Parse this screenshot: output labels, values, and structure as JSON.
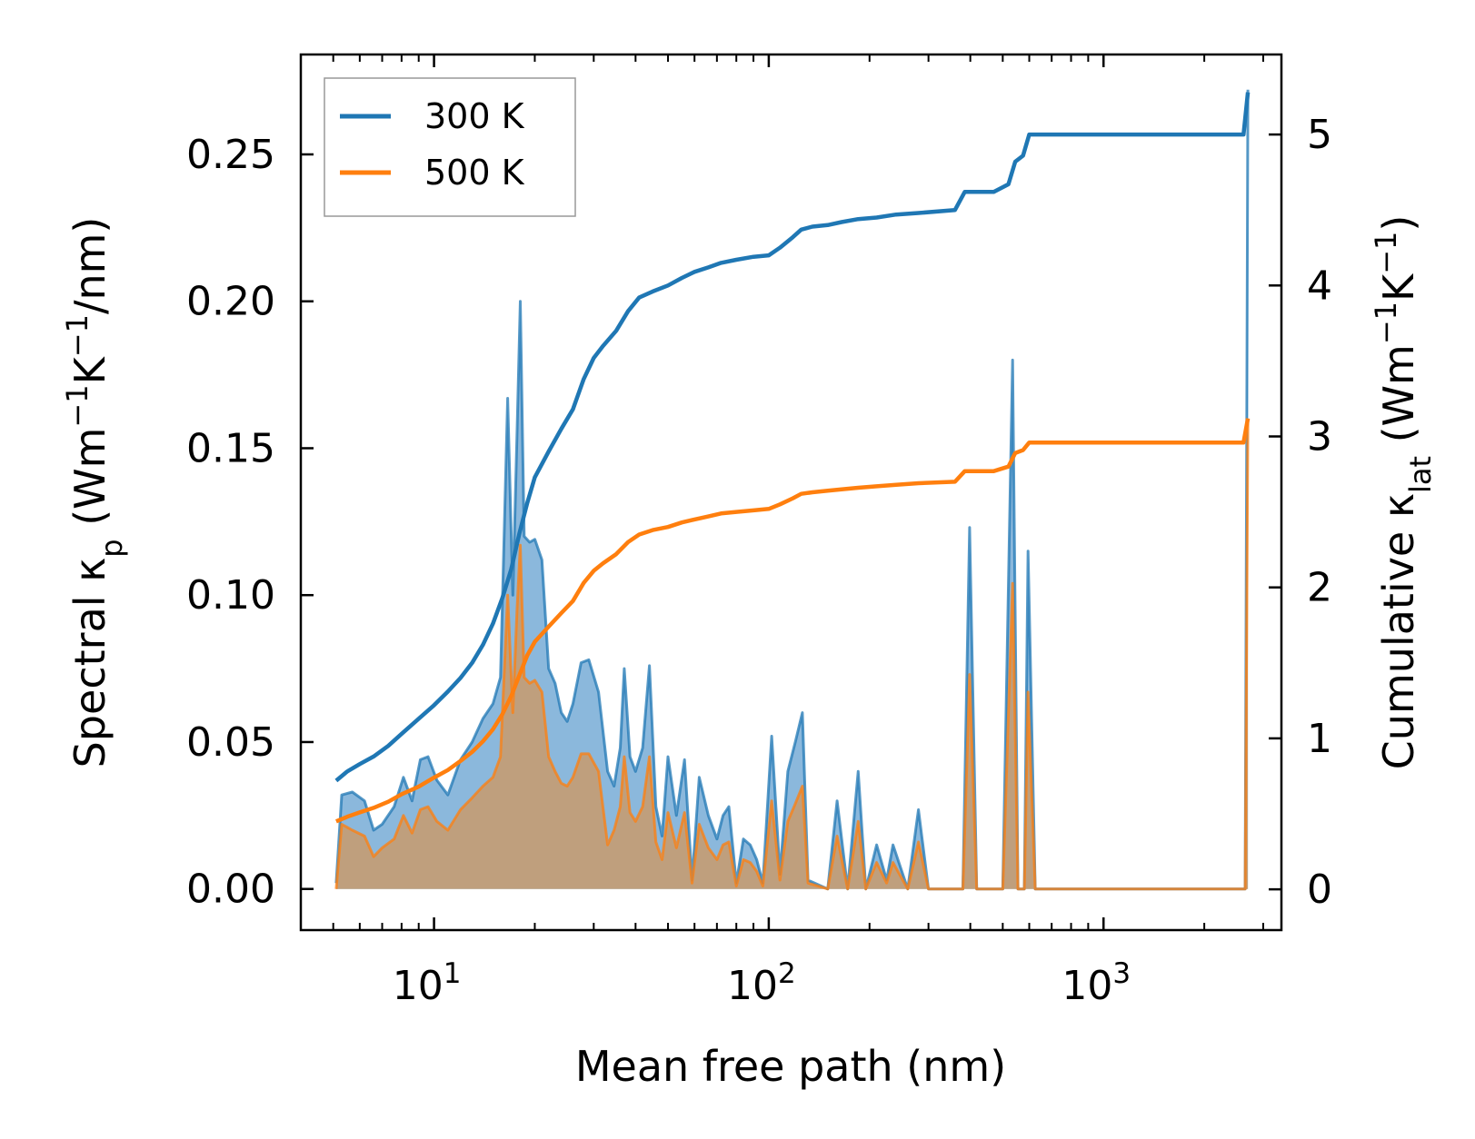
{
  "chart_data": {
    "type": "line+area",
    "xscale": "log",
    "xlabel": "Mean free path (nm)",
    "xlim": [
      4,
      3400
    ],
    "xticks": [
      {
        "value": 10,
        "base": "10",
        "exp": "1"
      },
      {
        "value": 100,
        "base": "10",
        "exp": "2"
      },
      {
        "value": 1000,
        "base": "10",
        "exp": "3"
      }
    ],
    "ylabel_left": {
      "prefix": "Spectral κ",
      "sub": "p",
      "mid": " (Wm",
      "sup1": "−1",
      "k": "K",
      "sup2": "−1",
      "suffix": "/nm)"
    },
    "ylabel_right": {
      "prefix": "Cumulative κ",
      "sub": "lat",
      "mid": " (Wm",
      "sup1": "−1",
      "k": "K",
      "sup2": "−1",
      "suffix": ")"
    },
    "ylim_left": [
      -0.014,
      0.284
    ],
    "ylim_right": [
      -0.27,
      5.53
    ],
    "yticks_left": [
      "0.00",
      "0.05",
      "0.10",
      "0.15",
      "0.20",
      "0.25"
    ],
    "yticks_right": [
      "0",
      "1",
      "2",
      "3",
      "4",
      "5"
    ],
    "legend": {
      "location": "top-left",
      "entries": [
        "300 K",
        "500 K"
      ]
    },
    "colors": {
      "s300": "#1f77b4",
      "s500": "#ff7f0e",
      "fill300": "#7eb0d8",
      "fill500": "#c89a6c"
    },
    "series": [
      {
        "name": "300 K",
        "spectral_peaks": [
          [
            5.1,
            0.002
          ],
          [
            5.3,
            0.032
          ],
          [
            5.7,
            0.033
          ],
          [
            6.2,
            0.03
          ],
          [
            6.6,
            0.02
          ],
          [
            7.0,
            0.022
          ],
          [
            7.6,
            0.028
          ],
          [
            8.1,
            0.038
          ],
          [
            8.6,
            0.03
          ],
          [
            9.1,
            0.044
          ],
          [
            9.6,
            0.045
          ],
          [
            10.2,
            0.037
          ],
          [
            11.0,
            0.032
          ],
          [
            12.0,
            0.044
          ],
          [
            13.0,
            0.05
          ],
          [
            14.0,
            0.058
          ],
          [
            15.0,
            0.063
          ],
          [
            15.8,
            0.072
          ],
          [
            16.6,
            0.167
          ],
          [
            17.2,
            0.1
          ],
          [
            17.7,
            0.155
          ],
          [
            18.1,
            0.2
          ],
          [
            18.6,
            0.12
          ],
          [
            19.3,
            0.118
          ],
          [
            20.0,
            0.119
          ],
          [
            21.0,
            0.112
          ],
          [
            22.0,
            0.075
          ],
          [
            23.0,
            0.07
          ],
          [
            24.0,
            0.06
          ],
          [
            25.0,
            0.057
          ],
          [
            26.0,
            0.063
          ],
          [
            27.5,
            0.077
          ],
          [
            29.0,
            0.078
          ],
          [
            31.0,
            0.067
          ],
          [
            33.0,
            0.04
          ],
          [
            34.5,
            0.035
          ],
          [
            36.0,
            0.048
          ],
          [
            37.0,
            0.075
          ],
          [
            38.5,
            0.045
          ],
          [
            40.0,
            0.04
          ],
          [
            42.0,
            0.048
          ],
          [
            44.0,
            0.076
          ],
          [
            46.0,
            0.028
          ],
          [
            48.0,
            0.018
          ],
          [
            50.0,
            0.045
          ],
          [
            53.0,
            0.025
          ],
          [
            56.0,
            0.044
          ],
          [
            59.0,
            0.003
          ],
          [
            62.0,
            0.038
          ],
          [
            66.0,
            0.025
          ],
          [
            70.0,
            0.017
          ],
          [
            73.0,
            0.025
          ],
          [
            76.0,
            0.028
          ],
          [
            80.0,
            0.002
          ],
          [
            84.0,
            0.017
          ],
          [
            88.0,
            0.015
          ],
          [
            92.0,
            0.01
          ],
          [
            96.0,
            0.002
          ],
          [
            102.0,
            0.052
          ],
          [
            108.0,
            0.005
          ],
          [
            114.0,
            0.04
          ],
          [
            120.0,
            0.05
          ],
          [
            126.0,
            0.06
          ],
          [
            131.0,
            0.003
          ],
          [
            150.0,
            0.0
          ],
          [
            160.0,
            0.03
          ],
          [
            172.0,
            0.0
          ],
          [
            185.0,
            0.04
          ],
          [
            195.0,
            0.0
          ],
          [
            210.0,
            0.015
          ],
          [
            225.0,
            0.003
          ],
          [
            235.0,
            0.015
          ],
          [
            260.0,
            0.0
          ],
          [
            280.0,
            0.027
          ],
          [
            300.0,
            0.0
          ],
          [
            380.0,
            0.0
          ],
          [
            398.0,
            0.123
          ],
          [
            418.0,
            0.0
          ],
          [
            500.0,
            0.0
          ],
          [
            535.0,
            0.18
          ],
          [
            555.0,
            0.0
          ],
          [
            580.0,
            0.0
          ],
          [
            595.0,
            0.115
          ],
          [
            625.0,
            0.0
          ],
          [
            2650.0,
            0.0
          ],
          [
            2700.0,
            0.272
          ]
        ],
        "cumulative": [
          [
            5.1,
            0.72
          ],
          [
            5.5,
            0.78
          ],
          [
            6.0,
            0.83
          ],
          [
            6.6,
            0.88
          ],
          [
            7.3,
            0.95
          ],
          [
            8.0,
            1.03
          ],
          [
            9.0,
            1.13
          ],
          [
            10.0,
            1.22
          ],
          [
            11.0,
            1.31
          ],
          [
            12.0,
            1.4
          ],
          [
            13.0,
            1.5
          ],
          [
            14.0,
            1.62
          ],
          [
            15.0,
            1.76
          ],
          [
            16.0,
            1.93
          ],
          [
            17.0,
            2.12
          ],
          [
            18.0,
            2.36
          ],
          [
            19.0,
            2.56
          ],
          [
            20.0,
            2.73
          ],
          [
            22.0,
            2.9
          ],
          [
            24.0,
            3.05
          ],
          [
            26.0,
            3.18
          ],
          [
            28.0,
            3.38
          ],
          [
            30.0,
            3.52
          ],
          [
            32.0,
            3.6
          ],
          [
            35.0,
            3.7
          ],
          [
            38.0,
            3.83
          ],
          [
            41.0,
            3.92
          ],
          [
            45.0,
            3.96
          ],
          [
            50.0,
            4.0
          ],
          [
            55.0,
            4.05
          ],
          [
            60.0,
            4.09
          ],
          [
            66.0,
            4.12
          ],
          [
            72.0,
            4.15
          ],
          [
            80.0,
            4.17
          ],
          [
            90.0,
            4.19
          ],
          [
            100.0,
            4.2
          ],
          [
            108.0,
            4.25
          ],
          [
            118.0,
            4.32
          ],
          [
            125.0,
            4.37
          ],
          [
            135.0,
            4.39
          ],
          [
            150.0,
            4.4
          ],
          [
            165.0,
            4.42
          ],
          [
            185.0,
            4.44
          ],
          [
            210.0,
            4.45
          ],
          [
            240.0,
            4.47
          ],
          [
            280.0,
            4.48
          ],
          [
            360.0,
            4.5
          ],
          [
            385.0,
            4.62
          ],
          [
            470.0,
            4.62
          ],
          [
            520.0,
            4.67
          ],
          [
            545.0,
            4.82
          ],
          [
            575.0,
            4.86
          ],
          [
            600.0,
            5.0
          ],
          [
            2620.0,
            5.0
          ],
          [
            2700.0,
            5.28
          ]
        ]
      },
      {
        "name": "500 K",
        "spectral_peaks": [
          [
            5.1,
            0.0
          ],
          [
            5.3,
            0.022
          ],
          [
            5.7,
            0.02
          ],
          [
            6.2,
            0.018
          ],
          [
            6.6,
            0.011
          ],
          [
            7.0,
            0.014
          ],
          [
            7.6,
            0.017
          ],
          [
            8.1,
            0.025
          ],
          [
            8.6,
            0.019
          ],
          [
            9.1,
            0.027
          ],
          [
            9.6,
            0.028
          ],
          [
            10.2,
            0.023
          ],
          [
            11.0,
            0.02
          ],
          [
            12.0,
            0.027
          ],
          [
            13.0,
            0.031
          ],
          [
            14.0,
            0.035
          ],
          [
            15.0,
            0.038
          ],
          [
            15.8,
            0.045
          ],
          [
            16.6,
            0.1
          ],
          [
            17.2,
            0.06
          ],
          [
            17.7,
            0.095
          ],
          [
            18.1,
            0.117
          ],
          [
            18.6,
            0.072
          ],
          [
            19.3,
            0.07
          ],
          [
            20.0,
            0.071
          ],
          [
            21.0,
            0.067
          ],
          [
            22.0,
            0.045
          ],
          [
            23.0,
            0.04
          ],
          [
            24.0,
            0.036
          ],
          [
            25.0,
            0.035
          ],
          [
            26.0,
            0.038
          ],
          [
            27.5,
            0.046
          ],
          [
            29.0,
            0.046
          ],
          [
            31.0,
            0.04
          ],
          [
            33.0,
            0.015
          ],
          [
            34.5,
            0.02
          ],
          [
            36.0,
            0.028
          ],
          [
            37.0,
            0.045
          ],
          [
            38.5,
            0.026
          ],
          [
            40.0,
            0.023
          ],
          [
            42.0,
            0.028
          ],
          [
            44.0,
            0.045
          ],
          [
            46.0,
            0.016
          ],
          [
            48.0,
            0.01
          ],
          [
            50.0,
            0.026
          ],
          [
            53.0,
            0.014
          ],
          [
            56.0,
            0.026
          ],
          [
            59.0,
            0.002
          ],
          [
            62.0,
            0.022
          ],
          [
            66.0,
            0.014
          ],
          [
            70.0,
            0.01
          ],
          [
            73.0,
            0.015
          ],
          [
            76.0,
            0.016
          ],
          [
            80.0,
            0.001
          ],
          [
            84.0,
            0.01
          ],
          [
            88.0,
            0.009
          ],
          [
            92.0,
            0.006
          ],
          [
            96.0,
            0.001
          ],
          [
            102.0,
            0.03
          ],
          [
            108.0,
            0.003
          ],
          [
            114.0,
            0.023
          ],
          [
            120.0,
            0.029
          ],
          [
            126.0,
            0.035
          ],
          [
            131.0,
            0.002
          ],
          [
            150.0,
            0.0
          ],
          [
            160.0,
            0.018
          ],
          [
            172.0,
            0.0
          ],
          [
            185.0,
            0.023
          ],
          [
            195.0,
            0.0
          ],
          [
            210.0,
            0.009
          ],
          [
            225.0,
            0.002
          ],
          [
            235.0,
            0.009
          ],
          [
            260.0,
            0.0
          ],
          [
            280.0,
            0.016
          ],
          [
            300.0,
            0.0
          ],
          [
            380.0,
            0.0
          ],
          [
            398.0,
            0.073
          ],
          [
            418.0,
            0.0
          ],
          [
            500.0,
            0.0
          ],
          [
            535.0,
            0.104
          ],
          [
            555.0,
            0.0
          ],
          [
            580.0,
            0.0
          ],
          [
            595.0,
            0.067
          ],
          [
            625.0,
            0.0
          ],
          [
            2650.0,
            0.0
          ],
          [
            2700.0,
            0.16
          ]
        ],
        "cumulative": [
          [
            5.1,
            0.45
          ],
          [
            5.5,
            0.48
          ],
          [
            6.0,
            0.51
          ],
          [
            6.6,
            0.54
          ],
          [
            7.3,
            0.58
          ],
          [
            8.0,
            0.63
          ],
          [
            9.0,
            0.68
          ],
          [
            10.0,
            0.74
          ],
          [
            11.0,
            0.79
          ],
          [
            12.0,
            0.85
          ],
          [
            13.0,
            0.91
          ],
          [
            14.0,
            0.98
          ],
          [
            15.0,
            1.06
          ],
          [
            16.0,
            1.16
          ],
          [
            17.0,
            1.28
          ],
          [
            18.0,
            1.42
          ],
          [
            19.0,
            1.55
          ],
          [
            20.0,
            1.64
          ],
          [
            22.0,
            1.74
          ],
          [
            24.0,
            1.83
          ],
          [
            26.0,
            1.91
          ],
          [
            28.0,
            2.03
          ],
          [
            30.0,
            2.11
          ],
          [
            32.0,
            2.16
          ],
          [
            35.0,
            2.22
          ],
          [
            38.0,
            2.3
          ],
          [
            41.0,
            2.35
          ],
          [
            45.0,
            2.38
          ],
          [
            50.0,
            2.4
          ],
          [
            55.0,
            2.43
          ],
          [
            60.0,
            2.45
          ],
          [
            66.0,
            2.47
          ],
          [
            72.0,
            2.49
          ],
          [
            80.0,
            2.5
          ],
          [
            90.0,
            2.51
          ],
          [
            100.0,
            2.52
          ],
          [
            108.0,
            2.55
          ],
          [
            118.0,
            2.59
          ],
          [
            125.0,
            2.62
          ],
          [
            135.0,
            2.63
          ],
          [
            150.0,
            2.64
          ],
          [
            165.0,
            2.65
          ],
          [
            185.0,
            2.66
          ],
          [
            210.0,
            2.67
          ],
          [
            240.0,
            2.68
          ],
          [
            280.0,
            2.69
          ],
          [
            360.0,
            2.7
          ],
          [
            385.0,
            2.77
          ],
          [
            470.0,
            2.77
          ],
          [
            520.0,
            2.8
          ],
          [
            545.0,
            2.89
          ],
          [
            575.0,
            2.91
          ],
          [
            600.0,
            2.96
          ],
          [
            2620.0,
            2.96
          ],
          [
            2700.0,
            3.12
          ]
        ]
      }
    ]
  }
}
